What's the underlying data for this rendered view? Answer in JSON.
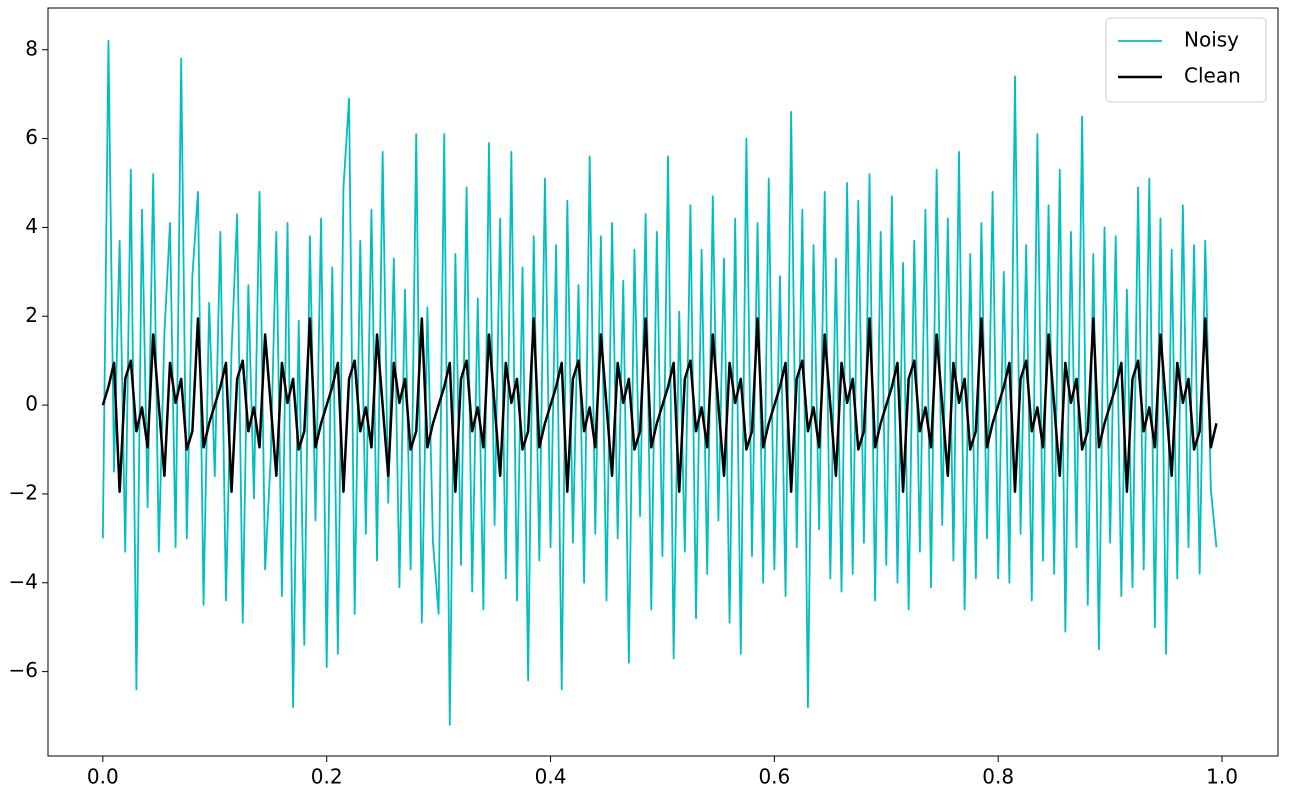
{
  "chart_data": {
    "type": "line",
    "x": [
      0,
      0.005,
      0.01,
      0.015,
      0.02,
      0.025,
      0.03,
      0.035,
      0.04,
      0.045,
      0.05,
      0.055,
      0.06,
      0.065,
      0.07,
      0.075,
      0.08,
      0.085,
      0.09,
      0.095,
      0.1,
      0.105,
      0.11,
      0.115,
      0.12,
      0.125,
      0.13,
      0.135,
      0.14,
      0.145,
      0.15,
      0.155,
      0.16,
      0.165,
      0.17,
      0.175,
      0.18,
      0.185,
      0.19,
      0.195,
      0.2,
      0.205,
      0.21,
      0.215,
      0.22,
      0.225,
      0.23,
      0.235,
      0.24,
      0.245,
      0.25,
      0.255,
      0.26,
      0.265,
      0.27,
      0.275,
      0.28,
      0.285,
      0.29,
      0.295,
      0.3,
      0.305,
      0.31,
      0.315,
      0.32,
      0.325,
      0.33,
      0.335,
      0.34,
      0.345,
      0.35,
      0.355,
      0.36,
      0.365,
      0.37,
      0.375,
      0.38,
      0.385,
      0.39,
      0.395,
      0.4,
      0.405,
      0.41,
      0.415,
      0.42,
      0.425,
      0.43,
      0.435,
      0.44,
      0.445,
      0.45,
      0.455,
      0.46,
      0.465,
      0.47,
      0.475,
      0.48,
      0.485,
      0.49,
      0.495,
      0.5,
      0.505,
      0.51,
      0.515,
      0.52,
      0.525,
      0.53,
      0.535,
      0.54,
      0.545,
      0.55,
      0.555,
      0.56,
      0.565,
      0.57,
      0.575,
      0.58,
      0.585,
      0.59,
      0.595,
      0.6,
      0.605,
      0.61,
      0.615,
      0.62,
      0.625,
      0.63,
      0.635,
      0.64,
      0.645,
      0.65,
      0.655,
      0.66,
      0.665,
      0.67,
      0.675,
      0.68,
      0.685,
      0.69,
      0.695,
      0.7,
      0.705,
      0.71,
      0.715,
      0.72,
      0.725,
      0.73,
      0.735,
      0.74,
      0.745,
      0.75,
      0.755,
      0.76,
      0.765,
      0.77,
      0.775,
      0.78,
      0.785,
      0.79,
      0.795,
      0.8,
      0.805,
      0.81,
      0.815,
      0.82,
      0.825,
      0.83,
      0.835,
      0.84,
      0.845,
      0.85,
      0.855,
      0.86,
      0.865,
      0.87,
      0.875,
      0.88,
      0.885,
      0.89,
      0.895,
      0.9,
      0.905,
      0.91,
      0.915,
      0.92,
      0.925,
      0.93,
      0.935,
      0.94,
      0.945,
      0.95,
      0.955,
      0.96,
      0.965,
      0.97,
      0.975,
      0.98,
      0.985,
      0.99,
      0.995
    ],
    "series": [
      {
        "name": "Noisy",
        "color": "#00bfbf",
        "width": 1.8,
        "values": [
          -3.0,
          8.2,
          -1.5,
          3.7,
          -3.3,
          5.3,
          -6.4,
          4.4,
          -2.3,
          5.2,
          -3.3,
          1.6,
          4.1,
          -3.2,
          7.8,
          -3.0,
          2.9,
          4.8,
          -4.5,
          2.3,
          -1.6,
          3.9,
          -4.4,
          1.2,
          4.3,
          -4.9,
          2.7,
          -2.1,
          4.8,
          -3.7,
          -1.2,
          3.9,
          -4.3,
          4.1,
          -6.8,
          1.9,
          -5.4,
          3.8,
          -2.6,
          4.2,
          -5.9,
          3.1,
          -5.6,
          4.9,
          6.9,
          -4.7,
          3.7,
          -2.9,
          4.4,
          -3.5,
          5.7,
          -2.2,
          3.3,
          -4.1,
          2.6,
          -3.7,
          6.1,
          -4.9,
          2.2,
          -3.1,
          -4.7,
          6.1,
          -7.2,
          3.4,
          -3.6,
          4.9,
          -4.2,
          2.4,
          -4.6,
          5.9,
          -2.7,
          4.2,
          -3.9,
          5.7,
          -4.4,
          3.1,
          -6.2,
          3.8,
          -3.5,
          5.1,
          -3.2,
          3.6,
          -6.4,
          4.6,
          -3.1,
          2.7,
          -4.0,
          5.6,
          -2.9,
          3.8,
          -4.4,
          4.1,
          -3.0,
          2.8,
          -5.8,
          3.5,
          -2.5,
          4.3,
          -4.6,
          3.9,
          -3.4,
          5.6,
          -5.7,
          2.1,
          -3.3,
          4.5,
          -4.8,
          3.5,
          -3.8,
          4.7,
          -2.6,
          3.3,
          -4.9,
          4.2,
          -5.6,
          6.0,
          -3.4,
          4.1,
          -4.0,
          5.1,
          -3.7,
          2.9,
          -4.3,
          6.6,
          -3.2,
          4.4,
          -6.8,
          3.6,
          -2.8,
          4.8,
          -3.9,
          3.3,
          -4.2,
          5.0,
          -3.8,
          4.6,
          -3.1,
          5.2,
          -4.4,
          3.9,
          -3.6,
          4.7,
          -4.0,
          3.2,
          -4.6,
          3.7,
          -3.3,
          4.4,
          -4.1,
          5.3,
          -2.7,
          4.2,
          -3.5,
          5.7,
          -4.6,
          3.4,
          -3.9,
          4.1,
          -3.0,
          4.8,
          -3.9,
          3.0,
          -4.0,
          7.4,
          -2.9,
          3.6,
          -4.4,
          6.1,
          -3.5,
          4.5,
          -3.8,
          5.3,
          -5.1,
          3.9,
          -3.2,
          6.5,
          -4.5,
          3.4,
          -5.5,
          4.0,
          -3.1,
          3.8,
          -4.3,
          2.6,
          -4.1,
          4.9,
          -3.7,
          5.1,
          -5.0,
          4.2,
          -5.6,
          3.5,
          -3.9,
          4.5,
          -3.2,
          3.6,
          -3.8,
          3.7,
          -1.9,
          -3.2
        ]
      },
      {
        "name": "Clean",
        "color": "#000000",
        "width": 2.5,
        "values": [
          0,
          0.41,
          0.95,
          -1.95,
          0.59,
          1,
          -0.59,
          -0.05,
          -0.95,
          1.59,
          0,
          -1.59,
          0.95,
          0.05,
          0.59,
          -1,
          -0.59,
          1.95,
          -0.95,
          -0.41,
          0,
          0.41,
          0.95,
          -1.95,
          0.59,
          1,
          -0.59,
          -0.05,
          -0.95,
          1.59,
          0,
          -1.59,
          0.95,
          0.05,
          0.59,
          -1,
          -0.59,
          1.95,
          -0.95,
          -0.41,
          0,
          0.41,
          0.95,
          -1.95,
          0.59,
          1,
          -0.59,
          -0.05,
          -0.95,
          1.59,
          0,
          -1.59,
          0.95,
          0.05,
          0.59,
          -1,
          -0.59,
          1.95,
          -0.95,
          -0.41,
          0,
          0.41,
          0.95,
          -1.95,
          0.59,
          1,
          -0.59,
          -0.05,
          -0.95,
          1.59,
          0,
          -1.59,
          0.95,
          0.05,
          0.59,
          -1,
          -0.59,
          1.95,
          -0.95,
          -0.41,
          0,
          0.41,
          0.95,
          -1.95,
          0.59,
          1,
          -0.59,
          -0.05,
          -0.95,
          1.59,
          0,
          -1.59,
          0.95,
          0.05,
          0.59,
          -1,
          -0.59,
          1.95,
          -0.95,
          -0.41,
          0,
          0.41,
          0.95,
          -1.95,
          0.59,
          1,
          -0.59,
          -0.05,
          -0.95,
          1.59,
          0,
          -1.59,
          0.95,
          0.05,
          0.59,
          -1,
          -0.59,
          1.95,
          -0.95,
          -0.41,
          0,
          0.41,
          0.95,
          -1.95,
          0.59,
          1,
          -0.59,
          -0.05,
          -0.95,
          1.59,
          0,
          -1.59,
          0.95,
          0.05,
          0.59,
          -1,
          -0.59,
          1.95,
          -0.95,
          -0.41,
          0,
          0.41,
          0.95,
          -1.95,
          0.59,
          1,
          -0.59,
          -0.05,
          -0.95,
          1.59,
          0,
          -1.59,
          0.95,
          0.05,
          0.59,
          -1,
          -0.59,
          1.95,
          -0.95,
          -0.41,
          0,
          0.41,
          0.95,
          -1.95,
          0.59,
          1,
          -0.59,
          -0.05,
          -0.95,
          1.59,
          0,
          -1.59,
          0.95,
          0.05,
          0.59,
          -1,
          -0.59,
          1.95,
          -0.95,
          -0.41,
          0,
          0.41,
          0.95,
          -1.95,
          0.59,
          1,
          -0.59,
          -0.05,
          -0.95,
          1.59,
          0,
          -1.59,
          0.95,
          0.05,
          0.59,
          -1,
          -0.59,
          1.95,
          -0.95,
          -0.41
        ]
      }
    ],
    "xlim": [
      -0.049,
      1.05
    ],
    "ylim": [
      -7.9,
      8.94
    ],
    "xticks": [
      {
        "value": 0,
        "label": "0.0"
      },
      0.2,
      0.4,
      0.6,
      0.8,
      {
        "value": 1,
        "label": "1.0"
      }
    ],
    "yticks": [
      {
        "value": -6,
        "label": "−6"
      },
      {
        "value": -4,
        "label": "−4"
      },
      {
        "value": -2,
        "label": "−2"
      },
      0,
      2,
      4,
      6,
      8
    ],
    "grid": false,
    "legend": "upper right"
  }
}
